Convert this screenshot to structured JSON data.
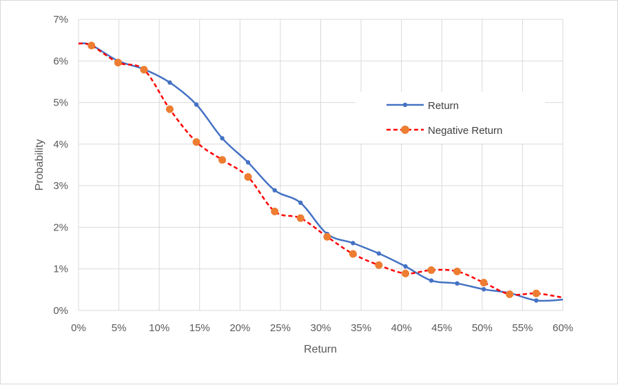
{
  "chart_data": {
    "type": "line",
    "title": "",
    "xlabel": "Return",
    "ylabel": "Probability",
    "xlim": [
      0,
      60
    ],
    "ylim": [
      0,
      7
    ],
    "x_ticks": [
      "0%",
      "5%",
      "10%",
      "15%",
      "20%",
      "25%",
      "30%",
      "35%",
      "40%",
      "45%",
      "50%",
      "55%",
      "60%"
    ],
    "y_ticks": [
      "0%",
      "1%",
      "2%",
      "3%",
      "4%",
      "5%",
      "6%",
      "7%"
    ],
    "grid": true,
    "legend_position": "right",
    "series": [
      {
        "name": "Return",
        "color": "#4472c4",
        "style": "solid",
        "marker": "small-circle",
        "points": [
          [
            0,
            6.42
          ],
          [
            1.6,
            6.38
          ],
          [
            4.9,
            6.0
          ],
          [
            8.1,
            5.8
          ],
          [
            11.3,
            5.48
          ],
          [
            14.6,
            4.95
          ],
          [
            17.8,
            4.14
          ],
          [
            21.0,
            3.56
          ],
          [
            24.3,
            2.89
          ],
          [
            27.5,
            2.59
          ],
          [
            30.8,
            1.84
          ],
          [
            34.0,
            1.62
          ],
          [
            37.2,
            1.37
          ],
          [
            40.5,
            1.06
          ],
          [
            43.7,
            0.72
          ],
          [
            46.9,
            0.65
          ],
          [
            50.2,
            0.51
          ],
          [
            53.4,
            0.42
          ],
          [
            56.7,
            0.24
          ],
          [
            60.0,
            0.26
          ]
        ]
      },
      {
        "name": "Negative Return",
        "color": "#ff0000",
        "marker_color": "#ed7d31",
        "style": "dashed",
        "marker": "large-circle",
        "points": [
          [
            0,
            6.42
          ],
          [
            1.6,
            6.37
          ],
          [
            4.9,
            5.96
          ],
          [
            8.1,
            5.79
          ],
          [
            11.3,
            4.84
          ],
          [
            14.6,
            4.05
          ],
          [
            17.8,
            3.62
          ],
          [
            21.0,
            3.21
          ],
          [
            24.3,
            2.38
          ],
          [
            27.5,
            2.22
          ],
          [
            30.8,
            1.77
          ],
          [
            34.0,
            1.36
          ],
          [
            37.2,
            1.09
          ],
          [
            40.5,
            0.89
          ],
          [
            43.7,
            0.97
          ],
          [
            46.9,
            0.94
          ],
          [
            50.2,
            0.67
          ],
          [
            53.4,
            0.39
          ],
          [
            56.7,
            0.41
          ],
          [
            60.0,
            0.31
          ]
        ]
      }
    ]
  }
}
